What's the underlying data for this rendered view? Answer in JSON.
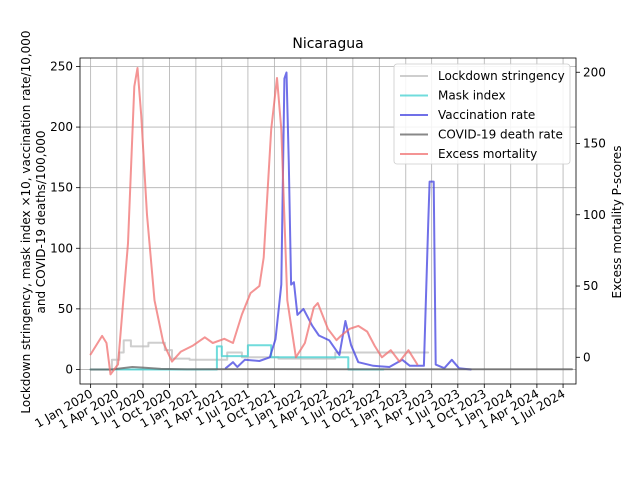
{
  "chart_data": {
    "type": "line",
    "title": "Nicaragua",
    "ylabel_left_line1": "Lockdown stringency, mask index ×10, vaccination rate/10,000",
    "ylabel_left_line2": "and COVID-19 deaths/100,000",
    "ylabel_right": "Excess mortality P-scores",
    "ylim_left": [
      -12,
      257
    ],
    "ylim_right": [
      -18.75,
      210
    ],
    "xlim": [
      "2019-11-25",
      "2024-08-15"
    ],
    "left_ticks": [
      "0",
      "50",
      "100",
      "150",
      "200",
      "250"
    ],
    "right_ticks": [
      "0",
      "50",
      "100",
      "150",
      "200"
    ],
    "x_ticks": [
      {
        "date": "2020-01-01",
        "label": "1 Jan 2020"
      },
      {
        "date": "2020-04-01",
        "label": "1 Apr 2020"
      },
      {
        "date": "2020-07-01",
        "label": "1 Jul 2020"
      },
      {
        "date": "2020-10-01",
        "label": "1 Oct 2020"
      },
      {
        "date": "2021-01-01",
        "label": "1 Jan 2021"
      },
      {
        "date": "2021-04-01",
        "label": "1 Apr 2021"
      },
      {
        "date": "2021-07-01",
        "label": "1 Jul 2021"
      },
      {
        "date": "2021-10-01",
        "label": "1 Oct 2021"
      },
      {
        "date": "2022-01-01",
        "label": "1 Jan 2022"
      },
      {
        "date": "2022-04-01",
        "label": "1 Apr 2022"
      },
      {
        "date": "2022-07-01",
        "label": "1 Jul 2022"
      },
      {
        "date": "2022-10-01",
        "label": "1 Oct 2022"
      },
      {
        "date": "2023-01-01",
        "label": "1 Jan 2023"
      },
      {
        "date": "2023-04-01",
        "label": "1 Apr 2023"
      },
      {
        "date": "2023-07-01",
        "label": "1 Jul 2023"
      },
      {
        "date": "2023-10-01",
        "label": "1 Oct 2023"
      },
      {
        "date": "2024-01-01",
        "label": "1 Jan 2024"
      },
      {
        "date": "2024-04-01",
        "label": "1 Apr 2024"
      },
      {
        "date": "2024-07-01",
        "label": "1 Jul 2024"
      }
    ],
    "grid": true,
    "legend_position": "top-right",
    "series": [
      {
        "name": "Lockdown stringency",
        "color": "#bdbdbd",
        "axis": "left",
        "step": true,
        "points": [
          [
            "2020-01-01",
            0
          ],
          [
            "2020-03-15",
            8
          ],
          [
            "2020-04-10",
            14
          ],
          [
            "2020-04-25",
            24
          ],
          [
            "2020-05-20",
            19
          ],
          [
            "2020-07-20",
            22
          ],
          [
            "2020-09-15",
            16
          ],
          [
            "2020-10-10",
            9
          ],
          [
            "2020-12-10",
            8
          ],
          [
            "2021-04-20",
            14
          ],
          [
            "2021-06-10",
            10
          ],
          [
            "2021-10-15",
            9
          ],
          [
            "2022-05-01",
            14
          ],
          [
            "2023-03-20",
            14
          ]
        ]
      },
      {
        "name": "Mask index",
        "color": "#40d0d0",
        "axis": "left",
        "step": true,
        "points": [
          [
            "2020-01-01",
            0
          ],
          [
            "2021-03-15",
            19
          ],
          [
            "2021-04-01",
            11
          ],
          [
            "2021-07-01",
            20
          ],
          [
            "2021-09-20",
            10
          ],
          [
            "2022-06-15",
            0
          ],
          [
            "2022-10-15",
            0
          ]
        ]
      },
      {
        "name": "Vaccination rate",
        "color": "#4040e0",
        "axis": "left",
        "step": false,
        "points": [
          [
            "2021-04-15",
            1
          ],
          [
            "2021-05-10",
            6
          ],
          [
            "2021-05-25",
            2
          ],
          [
            "2021-06-20",
            8
          ],
          [
            "2021-08-10",
            7
          ],
          [
            "2021-09-15",
            10
          ],
          [
            "2021-10-05",
            25
          ],
          [
            "2021-10-25",
            70
          ],
          [
            "2021-11-05",
            240
          ],
          [
            "2021-11-12",
            245
          ],
          [
            "2021-11-20",
            170
          ],
          [
            "2021-11-28",
            70
          ],
          [
            "2021-12-08",
            72
          ],
          [
            "2021-12-20",
            45
          ],
          [
            "2022-01-10",
            50
          ],
          [
            "2022-02-10",
            36
          ],
          [
            "2022-03-05",
            28
          ],
          [
            "2022-04-10",
            24
          ],
          [
            "2022-05-15",
            12
          ],
          [
            "2022-06-05",
            40
          ],
          [
            "2022-06-25",
            20
          ],
          [
            "2022-07-20",
            6
          ],
          [
            "2022-09-10",
            3
          ],
          [
            "2022-11-05",
            2
          ],
          [
            "2022-12-20",
            8
          ],
          [
            "2023-01-15",
            3
          ],
          [
            "2023-03-05",
            3
          ],
          [
            "2023-03-20",
            120
          ],
          [
            "2023-03-25",
            155
          ],
          [
            "2023-04-08",
            155
          ],
          [
            "2023-04-15",
            4
          ],
          [
            "2023-05-15",
            1
          ],
          [
            "2023-06-10",
            8
          ],
          [
            "2023-07-05",
            1
          ],
          [
            "2023-08-15",
            0
          ]
        ]
      },
      {
        "name": "COVID-19 death rate",
        "color": "#606060",
        "axis": "left",
        "step": false,
        "points": [
          [
            "2020-01-01",
            0
          ],
          [
            "2020-03-15",
            0
          ],
          [
            "2020-05-25",
            2
          ],
          [
            "2020-07-01",
            1.5
          ],
          [
            "2020-09-01",
            0.5
          ],
          [
            "2020-12-01",
            0.2
          ],
          [
            "2021-06-01",
            0.3
          ],
          [
            "2021-11-01",
            0.3
          ],
          [
            "2022-06-01",
            0.2
          ],
          [
            "2023-01-01",
            0.1
          ],
          [
            "2023-06-01",
            0.1
          ],
          [
            "2024-08-01",
            0.1
          ]
        ]
      },
      {
        "name": "Excess mortality",
        "color": "#f07070",
        "axis": "right",
        "step": false,
        "points": [
          [
            "2020-01-01",
            2
          ],
          [
            "2020-02-10",
            15
          ],
          [
            "2020-02-25",
            10
          ],
          [
            "2020-03-10",
            -12
          ],
          [
            "2020-04-05",
            -5
          ],
          [
            "2020-05-10",
            80
          ],
          [
            "2020-06-01",
            190
          ],
          [
            "2020-06-12",
            203
          ],
          [
            "2020-06-25",
            170
          ],
          [
            "2020-07-15",
            100
          ],
          [
            "2020-08-10",
            40
          ],
          [
            "2020-09-10",
            10
          ],
          [
            "2020-10-10",
            -3
          ],
          [
            "2020-11-10",
            4
          ],
          [
            "2020-12-20",
            8
          ],
          [
            "2021-02-01",
            14
          ],
          [
            "2021-03-01",
            10
          ],
          [
            "2021-04-10",
            13
          ],
          [
            "2021-05-10",
            10
          ],
          [
            "2021-06-10",
            30
          ],
          [
            "2021-07-10",
            45
          ],
          [
            "2021-08-10",
            50
          ],
          [
            "2021-08-25",
            70
          ],
          [
            "2021-09-20",
            160
          ],
          [
            "2021-10-10",
            196
          ],
          [
            "2021-10-25",
            160
          ],
          [
            "2021-11-15",
            40
          ],
          [
            "2021-12-15",
            0
          ],
          [
            "2022-01-15",
            10
          ],
          [
            "2022-02-15",
            35
          ],
          [
            "2022-03-01",
            38
          ],
          [
            "2022-04-05",
            20
          ],
          [
            "2022-05-05",
            12
          ],
          [
            "2022-05-20",
            15
          ],
          [
            "2022-06-20",
            20
          ],
          [
            "2022-07-20",
            22
          ],
          [
            "2022-08-20",
            18
          ],
          [
            "2022-09-15",
            8
          ],
          [
            "2022-10-10",
            0
          ],
          [
            "2022-11-10",
            5
          ],
          [
            "2022-12-10",
            -3
          ],
          [
            "2023-01-10",
            5
          ],
          [
            "2023-02-10",
            -5
          ]
        ]
      }
    ]
  }
}
